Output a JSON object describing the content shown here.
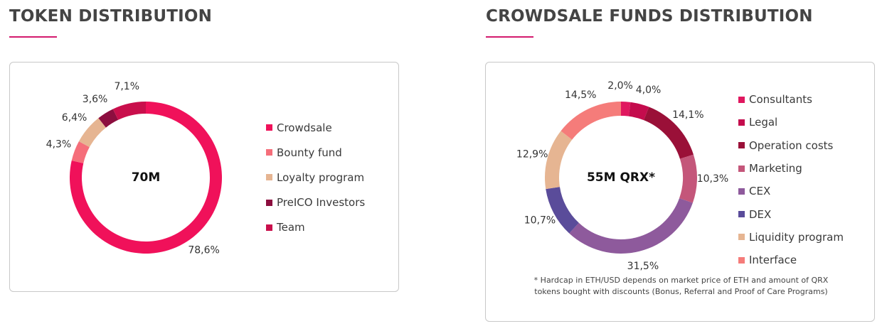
{
  "left": {
    "title": "TOKEN DISTRIBUTION",
    "center_label": "70M",
    "legend": [
      "Crowdsale",
      "Bounty fund",
      "Loyalty program",
      "PreICO Investors",
      "Team"
    ]
  },
  "right": {
    "title": "CROWDSALE FUNDS DISTRIBUTION",
    "center_label": "55M QRX*",
    "legend": [
      "Consultants",
      "Legal",
      "Operation costs",
      "Marketing",
      "CEX",
      "DEX",
      "Liquidity program",
      "Interface"
    ],
    "footnote": "* Hardcap in ETH/USD depends on market price of ETH and amount of QRX\ntokens bought with discounts (Bonus, Referral and Proof of Care Programs)"
  },
  "accent_color": "#d31a6e",
  "chart_data": [
    {
      "type": "pie",
      "variant": "donut",
      "title": "TOKEN DISTRIBUTION",
      "center_label": "70M",
      "start": "top",
      "direction": "clockwise",
      "categories": [
        "Crowdsale",
        "Bounty fund",
        "Loyalty program",
        "PreICO Investors",
        "Team"
      ],
      "values": [
        78.6,
        4.3,
        6.4,
        3.6,
        7.1
      ],
      "labels": [
        "78,6%",
        "4,3%",
        "6,4%",
        "3,6%",
        "7,1%"
      ],
      "colors": [
        "#f0115a",
        "#f56e7a",
        "#e6b592",
        "#8c0e3f",
        "#c90f4c"
      ],
      "legend_position": "right"
    },
    {
      "type": "pie",
      "variant": "donut",
      "title": "CROWDSALE FUNDS DISTRIBUTION",
      "center_label": "55M QRX*",
      "start": "top",
      "direction": "clockwise",
      "categories": [
        "Consultants",
        "Legal",
        "Operation costs",
        "Marketing",
        "CEX",
        "DEX",
        "Liquidity program",
        "Interface"
      ],
      "values": [
        2.0,
        4.0,
        14.1,
        10.3,
        31.5,
        10.7,
        12.9,
        14.5
      ],
      "labels": [
        "2,0%",
        "4,0%",
        "14,1%",
        "10,3%",
        "31,5%",
        "10,7%",
        "12,9%",
        "14,5%"
      ],
      "colors": [
        "#e0175f",
        "#c40c4d",
        "#9a1038",
        "#c4567a",
        "#8e5a9c",
        "#5a4c9a",
        "#e6b592",
        "#f57c7a"
      ],
      "legend_position": "right"
    }
  ]
}
